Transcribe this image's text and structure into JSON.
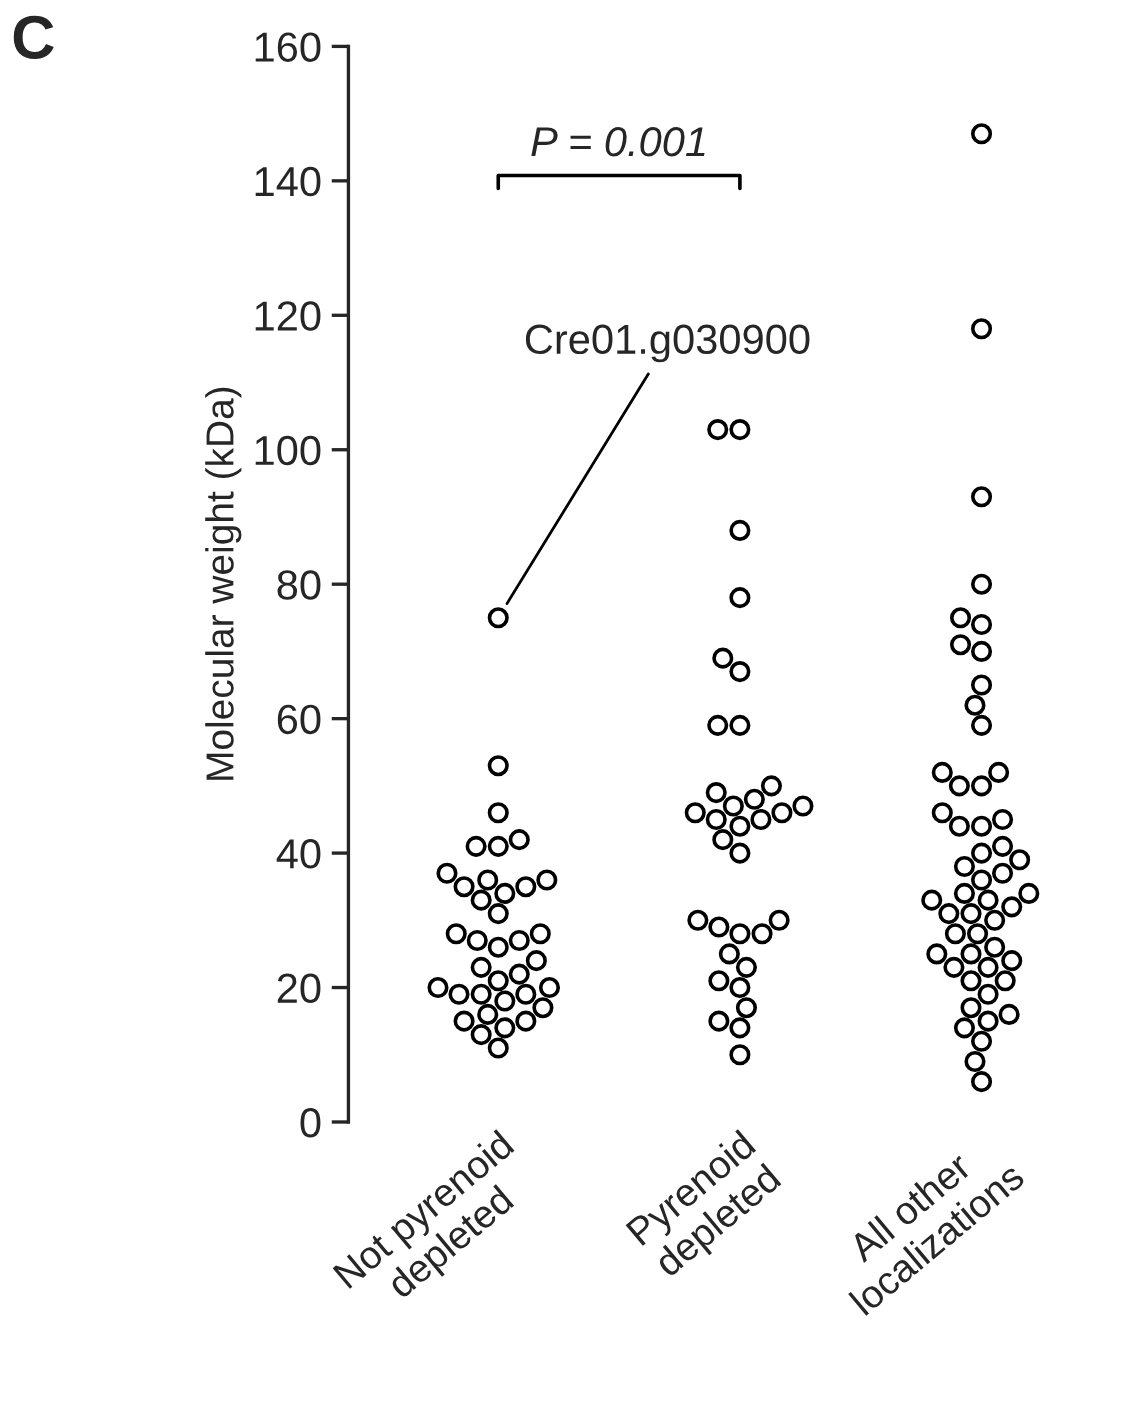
{
  "chart_data": {
    "type": "scatter",
    "title": "C",
    "ylabel": "Molecular weight (kDa)",
    "categories": [
      "Not pyrenoid\ndepleted",
      "Pyrenoid\ndepleted",
      "All other\nlocalizations"
    ],
    "series": [
      {
        "color": "#000000",
        "x": [
          "Not pyrenoid\ndepleted",
          "Not pyrenoid\ndepleted",
          "Not pyrenoid\ndepleted",
          "Not pyrenoid\ndepleted",
          "Not pyrenoid\ndepleted",
          "Not pyrenoid\ndepleted",
          "Not pyrenoid\ndepleted",
          "Not pyrenoid\ndepleted",
          "Not pyrenoid\ndepleted",
          "Not pyrenoid\ndepleted",
          "Not pyrenoid\ndepleted",
          "Not pyrenoid\ndepleted",
          "Not pyrenoid\ndepleted",
          "Not pyrenoid\ndepleted",
          "Not pyrenoid\ndepleted",
          "Not pyrenoid\ndepleted",
          "Not pyrenoid\ndepleted",
          "Not pyrenoid\ndepleted",
          "Not pyrenoid\ndepleted",
          "Not pyrenoid\ndepleted",
          "Not pyrenoid\ndepleted",
          "Not pyrenoid\ndepleted",
          "Not pyrenoid\ndepleted",
          "Not pyrenoid\ndepleted",
          "Not pyrenoid\ndepleted",
          "Not pyrenoid\ndepleted",
          "Not pyrenoid\ndepleted",
          "Not pyrenoid\ndepleted",
          "Not pyrenoid\ndepleted",
          "Not pyrenoid\ndepleted",
          "Not pyrenoid\ndepleted",
          "Not pyrenoid\ndepleted",
          "Not pyrenoid\ndepleted",
          "Not pyrenoid\ndepleted",
          "Not pyrenoid\ndepleted",
          "Not pyrenoid\ndepleted"
        ],
        "values": [
          75,
          53,
          46,
          42,
          41,
          41,
          37,
          36,
          36,
          35,
          35,
          34,
          33,
          31,
          28,
          28,
          27,
          27,
          26,
          24,
          23,
          22,
          21,
          20,
          20,
          19,
          19,
          19,
          18,
          17,
          16,
          15,
          15,
          14,
          13,
          11
        ]
      },
      {
        "color": "#000000",
        "x": [
          "Pyrenoid\ndepleted",
          "Pyrenoid\ndepleted",
          "Pyrenoid\ndepleted",
          "Pyrenoid\ndepleted",
          "Pyrenoid\ndepleted",
          "Pyrenoid\ndepleted",
          "Pyrenoid\ndepleted",
          "Pyrenoid\ndepleted",
          "Pyrenoid\ndepleted",
          "Pyrenoid\ndepleted",
          "Pyrenoid\ndepleted",
          "Pyrenoid\ndepleted",
          "Pyrenoid\ndepleted",
          "Pyrenoid\ndepleted",
          "Pyrenoid\ndepleted",
          "Pyrenoid\ndepleted",
          "Pyrenoid\ndepleted",
          "Pyrenoid\ndepleted",
          "Pyrenoid\ndepleted",
          "Pyrenoid\ndepleted",
          "Pyrenoid\ndepleted",
          "Pyrenoid\ndepleted",
          "Pyrenoid\ndepleted",
          "Pyrenoid\ndepleted",
          "Pyrenoid\ndepleted",
          "Pyrenoid\ndepleted",
          "Pyrenoid\ndepleted",
          "Pyrenoid\ndepleted",
          "Pyrenoid\ndepleted",
          "Pyrenoid\ndepleted",
          "Pyrenoid\ndepleted",
          "Pyrenoid\ndepleted",
          "Pyrenoid\ndepleted"
        ],
        "values": [
          103,
          103,
          88,
          78,
          69,
          67,
          59,
          59,
          50,
          49,
          48,
          47,
          47,
          46,
          46,
          45,
          45,
          44,
          42,
          40,
          30,
          30,
          29,
          28,
          28,
          25,
          23,
          21,
          20,
          17,
          15,
          14,
          10
        ]
      },
      {
        "color": "#000000",
        "x": [
          "All other\nlocalizations",
          "All other\nlocalizations",
          "All other\nlocalizations",
          "All other\nlocalizations",
          "All other\nlocalizations",
          "All other\nlocalizations",
          "All other\nlocalizations",
          "All other\nlocalizations",
          "All other\nlocalizations",
          "All other\nlocalizations",
          "All other\nlocalizations",
          "All other\nlocalizations",
          "All other\nlocalizations",
          "All other\nlocalizations",
          "All other\nlocalizations",
          "All other\nlocalizations",
          "All other\nlocalizations",
          "All other\nlocalizations",
          "All other\nlocalizations",
          "All other\nlocalizations",
          "All other\nlocalizations",
          "All other\nlocalizations",
          "All other\nlocalizations",
          "All other\nlocalizations",
          "All other\nlocalizations",
          "All other\nlocalizations",
          "All other\nlocalizations",
          "All other\nlocalizations",
          "All other\nlocalizations",
          "All other\nlocalizations",
          "All other\nlocalizations",
          "All other\nlocalizations",
          "All other\nlocalizations",
          "All other\nlocalizations",
          "All other\nlocalizations",
          "All other\nlocalizations",
          "All other\nlocalizations",
          "All other\nlocalizations",
          "All other\nlocalizations",
          "All other\nlocalizations",
          "All other\nlocalizations",
          "All other\nlocalizations",
          "All other\nlocalizations",
          "All other\nlocalizations",
          "All other\nlocalizations",
          "All other\nlocalizations",
          "All other\nlocalizations",
          "All other\nlocalizations",
          "All other\nlocalizations",
          "All other\nlocalizations",
          "All other\nlocalizations"
        ],
        "values": [
          147,
          118,
          93,
          80,
          75,
          74,
          71,
          70,
          65,
          62,
          59,
          52,
          52,
          50,
          50,
          46,
          45,
          44,
          44,
          41,
          40,
          39,
          38,
          37,
          36,
          34,
          34,
          33,
          33,
          32,
          31,
          31,
          30,
          28,
          28,
          26,
          25,
          25,
          24,
          23,
          23,
          21,
          21,
          19,
          17,
          16,
          15,
          14,
          12,
          9,
          6
        ]
      }
    ],
    "ylim": [
      0,
      160
    ],
    "yticks": [
      0,
      20,
      40,
      60,
      80,
      100,
      120,
      140,
      160
    ],
    "marker": "circle",
    "grid": false,
    "annotations": [
      {
        "text": "Cre01.g030900",
        "x": "Not pyrenoid\ndepleted",
        "y": 75
      },
      "P = 0.001"
    ]
  }
}
